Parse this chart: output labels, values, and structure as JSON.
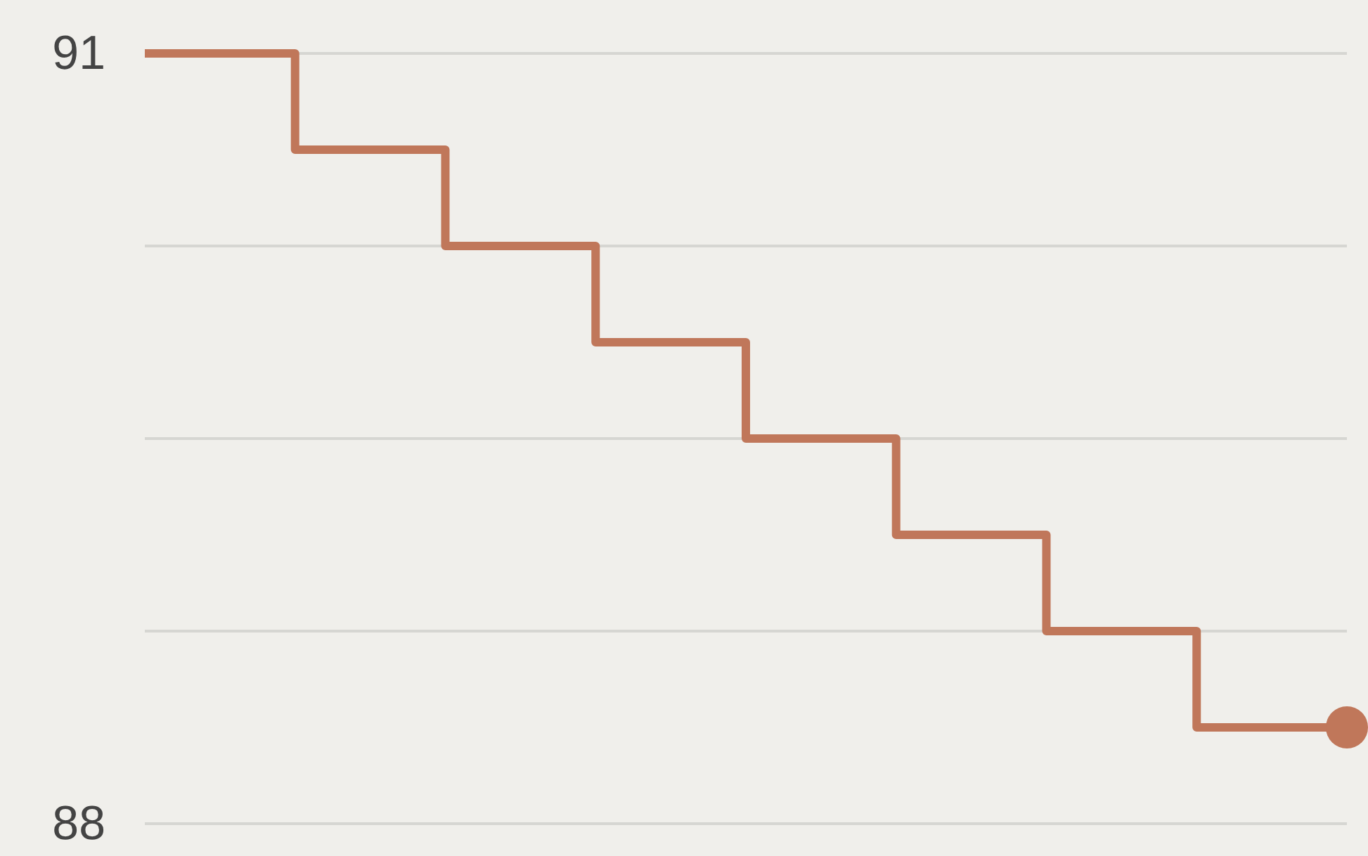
{
  "chart_data": {
    "type": "step",
    "categories": [
      null,
      null,
      null,
      null,
      null,
      null,
      null,
      null,
      null
    ],
    "series": [
      {
        "color": "#c0775a",
        "values": [
          91,
          90.625,
          90.25,
          89.875,
          89.5,
          89.125,
          88.75,
          88.375,
          88.375
        ]
      }
    ],
    "ylim": [
      88,
      91
    ],
    "yticks": [
      {
        "value": 88,
        "label": "88"
      },
      {
        "value": 88.75,
        "label": null
      },
      {
        "value": 89.5,
        "label": null
      },
      {
        "value": 90.25,
        "label": null
      },
      {
        "value": 91,
        "label": "91"
      }
    ],
    "grid": "y",
    "tick_labels": "y",
    "marker": "none",
    "line_style": "solid"
  }
}
